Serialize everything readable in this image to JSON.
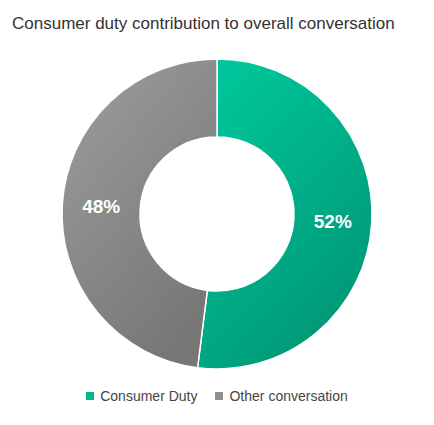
{
  "chart_data": {
    "type": "pie",
    "title": "Consumer duty contribution to overall conversation",
    "categories": [
      "Consumer Duty",
      "Other conversation"
    ],
    "values": [
      52,
      48
    ],
    "value_labels": [
      "52%",
      "48%"
    ],
    "colors": [
      "#00b68e",
      "#8e8e8e"
    ],
    "data_labels": true,
    "legend": "bottom"
  }
}
